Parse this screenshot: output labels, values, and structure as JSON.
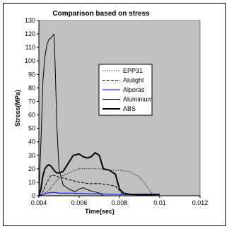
{
  "chart_data": {
    "type": "line",
    "title": "Comparison based on stress",
    "xlabel": "Time(sec)",
    "ylabel": "Stress(MPa)",
    "xlim": [
      0.004,
      0.012
    ],
    "ylim": [
      0,
      130
    ],
    "x_ticks": [
      "0.004",
      "0.006",
      "0.008",
      "0.01",
      "0.012"
    ],
    "y_ticks": [
      "0",
      "10",
      "20",
      "30",
      "40",
      "50",
      "60",
      "70",
      "80",
      "90",
      "100",
      "110",
      "120",
      "130"
    ],
    "plot_background": "#c0c0c0",
    "grid": false,
    "legend_position": "center-right",
    "series": [
      {
        "name": "EPP31",
        "color": "#000000",
        "dash": "dotted",
        "x": [
          0.004,
          0.0042,
          0.0044,
          0.0046,
          0.0048,
          0.005,
          0.0052,
          0.0055,
          0.0058,
          0.006,
          0.0065,
          0.007,
          0.0075,
          0.008,
          0.0085,
          0.009,
          0.0093,
          0.0096,
          0.0098
        ],
        "y": [
          0,
          1,
          3,
          6,
          10,
          13,
          15,
          17,
          19,
          20,
          20,
          20,
          19,
          19,
          18,
          14,
          8,
          2,
          0
        ]
      },
      {
        "name": "Alulight",
        "color": "#000000",
        "dash": "dashed",
        "x": [
          0.004,
          0.0042,
          0.0044,
          0.0046,
          0.0048,
          0.005,
          0.0055,
          0.006,
          0.0065,
          0.007,
          0.0075,
          0.0078,
          0.008,
          0.0082
        ],
        "y": [
          0,
          3,
          10,
          15,
          15,
          14,
          12,
          10,
          9,
          9,
          8,
          7,
          4,
          0
        ]
      },
      {
        "name": "Alporas",
        "color": "#0000ff",
        "dash": "solid",
        "x": [
          0.004,
          0.0042,
          0.0044,
          0.0046,
          0.0048,
          0.005,
          0.0055,
          0.006,
          0.0065,
          0.007,
          0.0075,
          0.008,
          0.0085,
          0.009,
          0.0095,
          0.01
        ],
        "y": [
          0,
          1,
          2,
          2.5,
          2.5,
          2,
          2,
          1.8,
          1.5,
          1.5,
          1.2,
          1,
          0.8,
          0.5,
          0.3,
          0
        ]
      },
      {
        "name": "Aluminium",
        "color": "#000000",
        "dash": "solid",
        "width": 1,
        "x": [
          0.004,
          0.0041,
          0.0042,
          0.0043,
          0.0044,
          0.0045,
          0.0046,
          0.0047,
          0.00475,
          0.0048,
          0.0049,
          0.005,
          0.0052,
          0.0055,
          0.0058,
          0.006,
          0.0062,
          0.0065,
          0.007,
          0.0072
        ],
        "y": [
          0,
          40,
          85,
          103,
          112,
          116,
          117,
          119,
          120,
          100,
          50,
          20,
          8,
          5,
          3,
          5,
          6,
          4,
          2,
          0
        ]
      },
      {
        "name": "ABS",
        "color": "#000000",
        "dash": "solid",
        "width": 2,
        "x": [
          0.004,
          0.0041,
          0.0042,
          0.0043,
          0.0044,
          0.0045,
          0.0046,
          0.0047,
          0.0048,
          0.0049,
          0.005,
          0.0052,
          0.0055,
          0.0057,
          0.006,
          0.0062,
          0.0064,
          0.0066,
          0.0068,
          0.007,
          0.0072,
          0.0075,
          0.0078,
          0.008,
          0.0082,
          0.0085,
          0.009,
          0.01
        ],
        "y": [
          0,
          5,
          15,
          20,
          22,
          23,
          22,
          20,
          18,
          17,
          17,
          18,
          25,
          30,
          31,
          29,
          28,
          29,
          32,
          30,
          20,
          19,
          16,
          5,
          2,
          1,
          1,
          1
        ]
      }
    ]
  }
}
